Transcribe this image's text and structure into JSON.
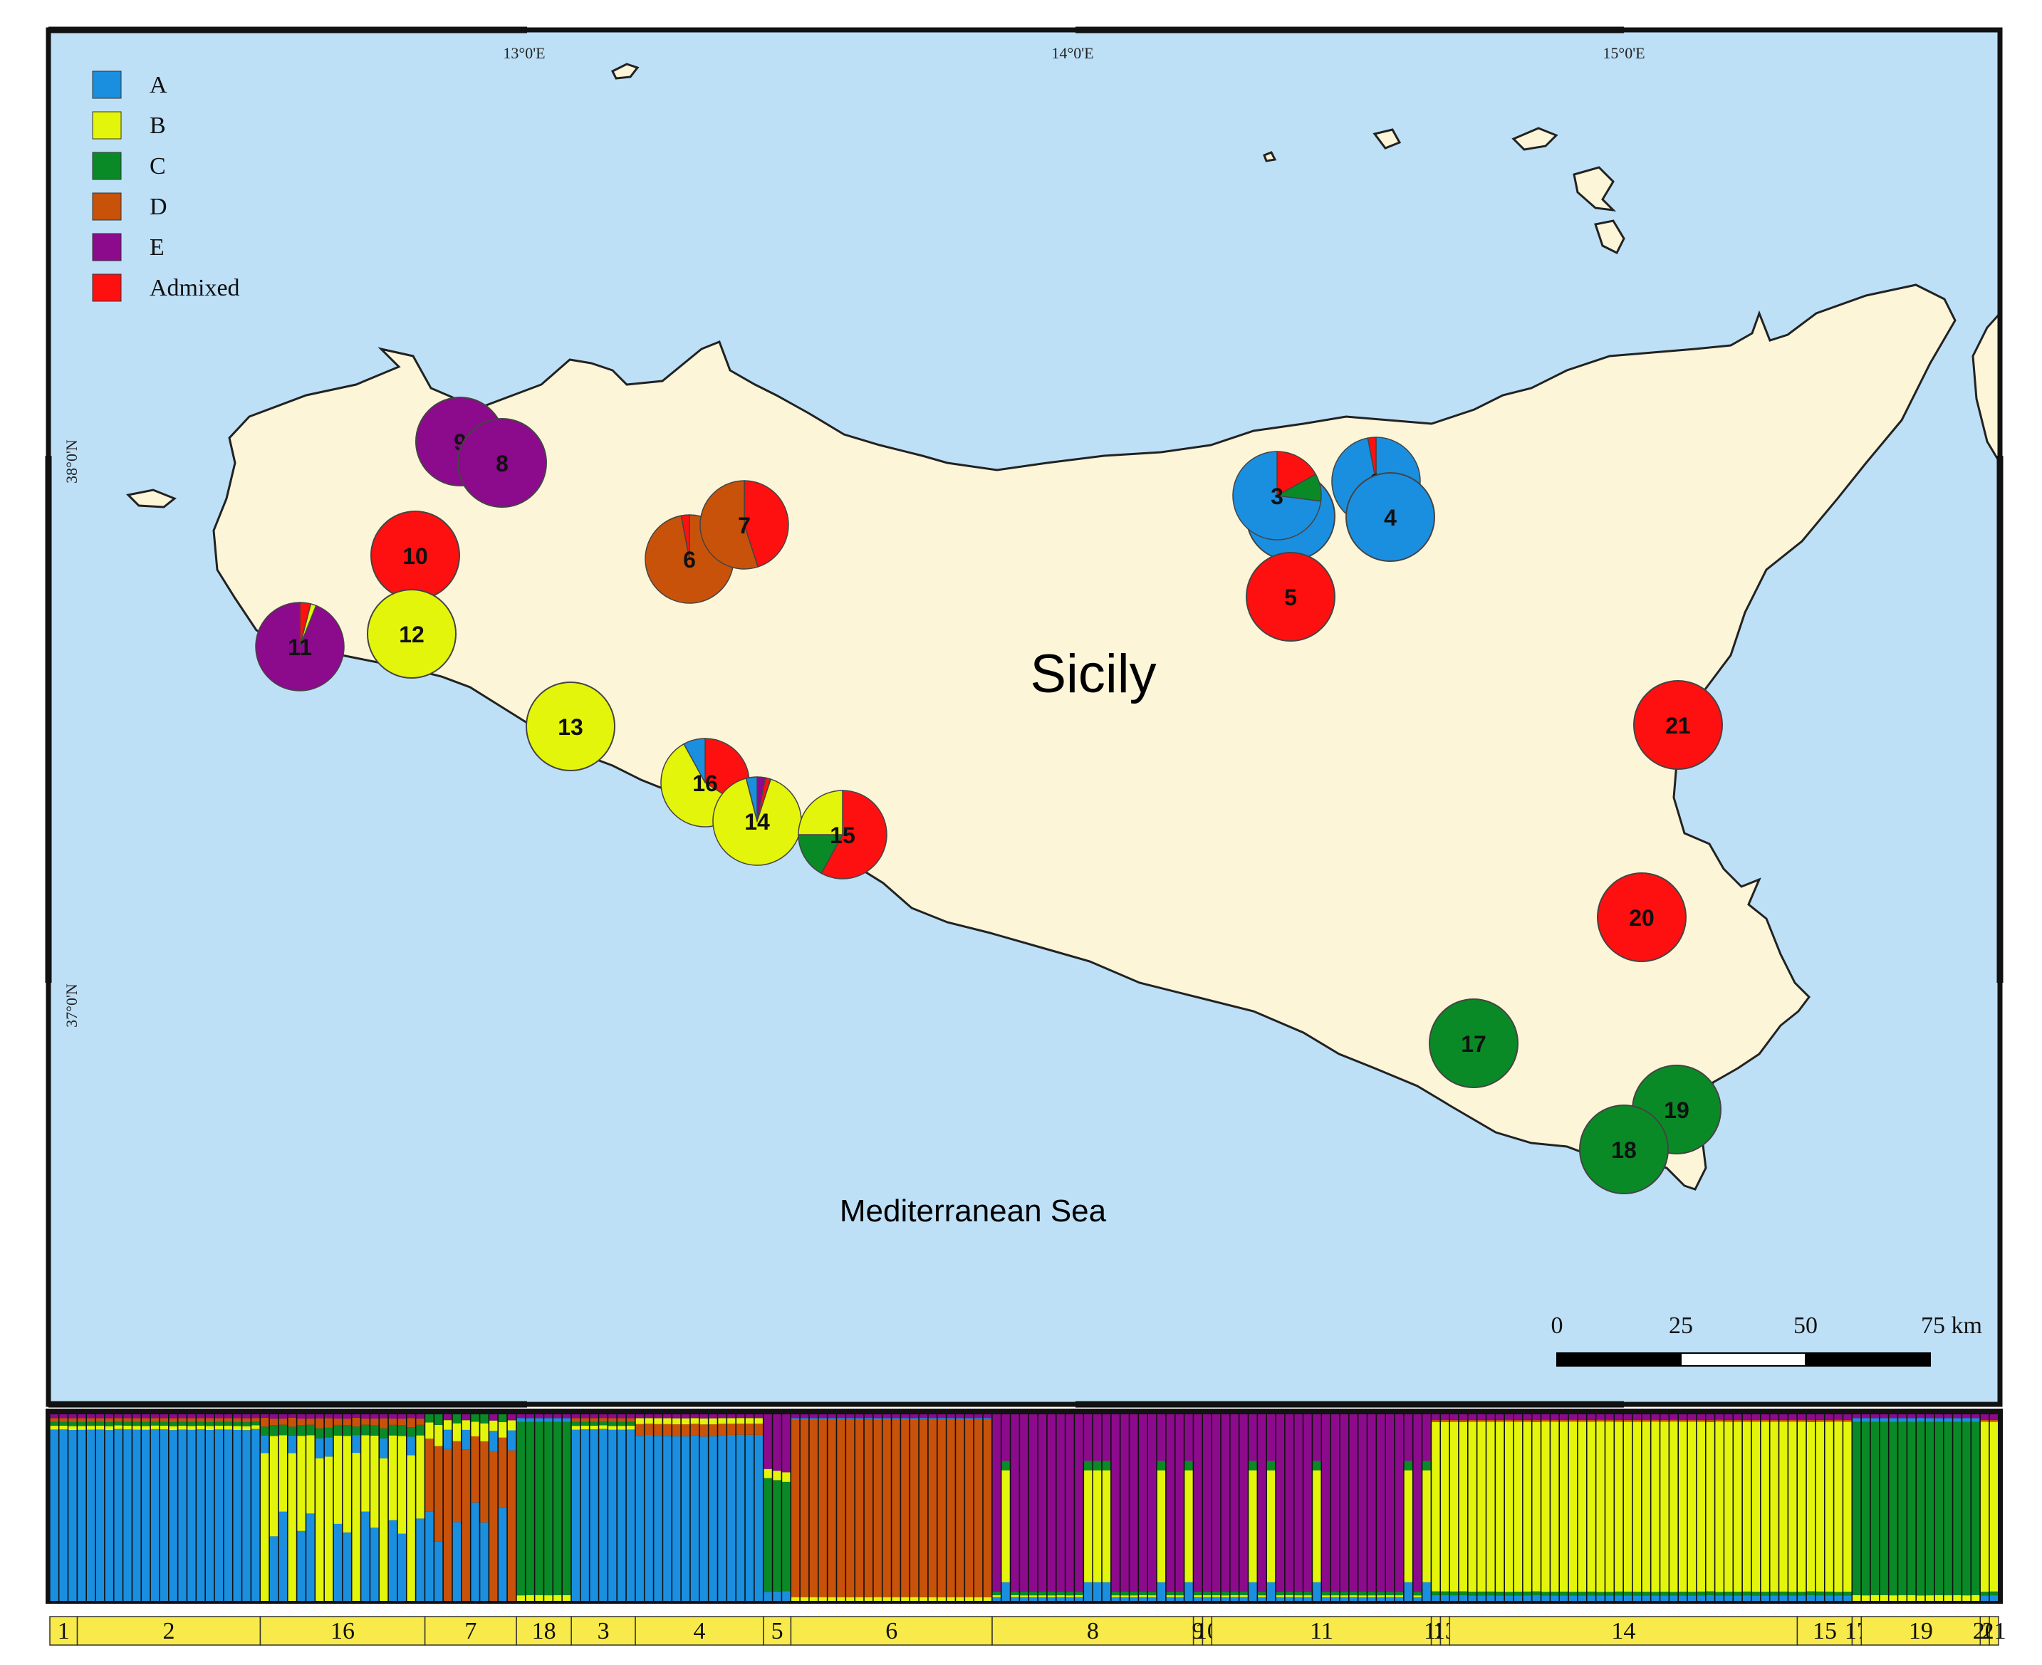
{
  "map": {
    "island_label": "Sicily",
    "sea_label": "Mediterranean Sea",
    "graticule": {
      "top": [
        "13°0'E",
        "14°0'E",
        "15°0'E"
      ],
      "left": [
        "38°0'N",
        "37°0'N"
      ]
    }
  },
  "legend": [
    {
      "key": "A",
      "label": "A",
      "color": "#1a8fe0"
    },
    {
      "key": "B",
      "label": "B",
      "color": "#e4f50c"
    },
    {
      "key": "C",
      "label": "C",
      "color": "#0a8a26"
    },
    {
      "key": "D",
      "label": "D",
      "color": "#c8520a"
    },
    {
      "key": "E",
      "label": "E",
      "color": "#8c0a8c"
    },
    {
      "key": "X",
      "label": "Admixed",
      "color": "#ff1010"
    }
  ],
  "populations": [
    {
      "id": "1",
      "label": "1",
      "fractions": {
        "A": 1
      }
    },
    {
      "id": "2",
      "label": "2",
      "fractions": {
        "A": 0.97,
        "X": 0.03
      }
    },
    {
      "id": "3",
      "label": "3",
      "fractions": {
        "X": 0.17,
        "C": 0.1,
        "A": 0.73
      }
    },
    {
      "id": "4",
      "label": "4",
      "fractions": {
        "A": 1
      }
    },
    {
      "id": "5",
      "label": "5",
      "fractions": {
        "X": 1
      }
    },
    {
      "id": "6",
      "label": "6",
      "fractions": {
        "D": 0.97,
        "X": 0.03
      }
    },
    {
      "id": "7",
      "label": "7",
      "fractions": {
        "X": 0.45,
        "D": 0.55
      }
    },
    {
      "id": "8",
      "label": "8",
      "fractions": {
        "E": 1
      }
    },
    {
      "id": "9",
      "label": "9",
      "fractions": {
        "E": 1
      }
    },
    {
      "id": "10",
      "label": "10",
      "fractions": {
        "X": 1
      }
    },
    {
      "id": "11",
      "label": "11",
      "fractions": {
        "X": 0.04,
        "B": 0.02,
        "E": 0.94
      }
    },
    {
      "id": "12",
      "label": "12",
      "fractions": {
        "B": 1
      }
    },
    {
      "id": "13",
      "label": "13",
      "fractions": {
        "B": 1
      }
    },
    {
      "id": "14",
      "label": "14",
      "fractions": {
        "E": 0.03,
        "X": 0.02,
        "B": 0.91,
        "A": 0.04
      }
    },
    {
      "id": "15",
      "label": "15",
      "fractions": {
        "X": 0.58,
        "C": 0.17,
        "B": 0.25
      }
    },
    {
      "id": "16",
      "label": "16",
      "fractions": {
        "X": 0.34,
        "B": 0.58,
        "A": 0.08
      }
    },
    {
      "id": "17",
      "label": "17",
      "fractions": {
        "C": 1
      }
    },
    {
      "id": "18",
      "label": "18",
      "fractions": {
        "C": 1
      }
    },
    {
      "id": "19",
      "label": "19",
      "fractions": {
        "C": 1
      }
    },
    {
      "id": "20",
      "label": "20",
      "fractions": {
        "X": 1
      }
    },
    {
      "id": "21",
      "label": "21",
      "fractions": {
        "X": 1
      }
    }
  ],
  "scale_bar": {
    "labels": [
      "0",
      "25",
      "50",
      "75 km"
    ]
  },
  "structure_plot": {
    "groups": [
      {
        "label": "1",
        "n": 3,
        "profile": "A"
      },
      {
        "label": "2",
        "n": 20,
        "profile": "A"
      },
      {
        "label": "16",
        "n": 18,
        "profile": "AB"
      },
      {
        "label": "7",
        "n": 10,
        "profile": "DA"
      },
      {
        "label": "18",
        "n": 6,
        "profile": "C"
      },
      {
        "label": "3",
        "n": 7,
        "profile": "A"
      },
      {
        "label": "4",
        "n": 14,
        "profile": "AD"
      },
      {
        "label": "5",
        "n": 3,
        "profile": "EC"
      },
      {
        "label": "6",
        "n": 22,
        "profile": "D"
      },
      {
        "label": "8",
        "n": 22,
        "profile": "E"
      },
      {
        "label": "9",
        "n": 1,
        "profile": "E"
      },
      {
        "label": "10",
        "n": 1,
        "profile": "E"
      },
      {
        "label": "11",
        "n": 24,
        "profile": "E"
      },
      {
        "label": "12",
        "n": 1,
        "profile": "B"
      },
      {
        "label": "13",
        "n": 1,
        "profile": "B"
      },
      {
        "label": "14",
        "n": 38,
        "profile": "B"
      },
      {
        "label": "15",
        "n": 6,
        "profile": "B"
      },
      {
        "label": "17",
        "n": 1,
        "profile": "C"
      },
      {
        "label": "19",
        "n": 13,
        "profile": "C"
      },
      {
        "label": "20",
        "n": 1,
        "profile": "B"
      },
      {
        "label": "21",
        "n": 1,
        "profile": "B"
      }
    ]
  }
}
